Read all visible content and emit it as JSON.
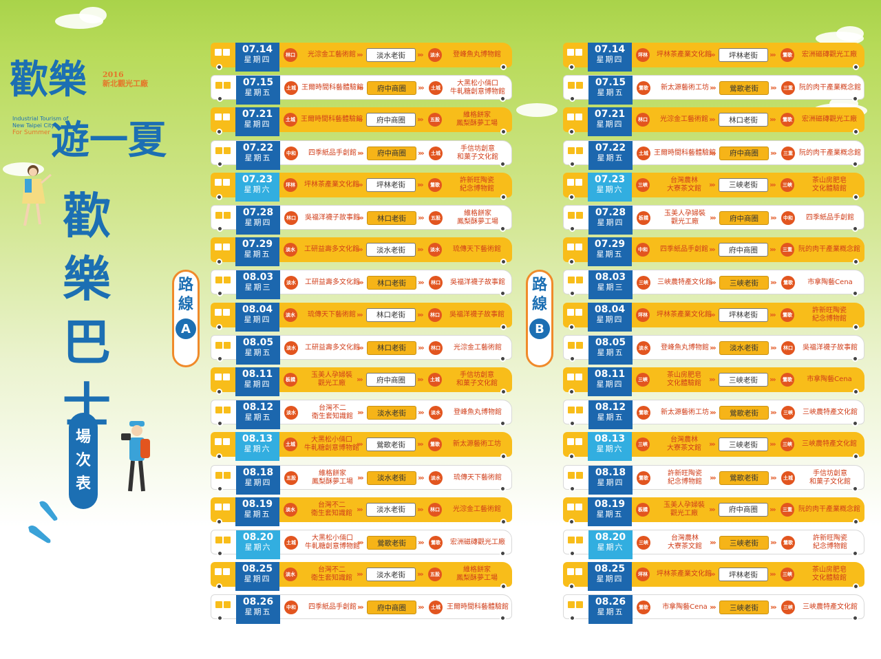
{
  "logo": {
    "line1": "歡樂",
    "line2": "遊一夏",
    "year": "2016",
    "subtitle": "新北觀光工廠",
    "en1": "Industrial Tourism of",
    "en2": "New Taipei City",
    "en3": "For Summer"
  },
  "title": [
    "歡",
    "樂",
    "巴",
    "士"
  ],
  "schedule_label": [
    "場",
    "次",
    "表"
  ],
  "route_a": {
    "label": [
      "路",
      "線"
    ],
    "letter": "A"
  },
  "route_b": {
    "label": [
      "路",
      "線"
    ],
    "letter": "B"
  },
  "colors": {
    "accent": "#1c67ae",
    "highlight_date": "#32aee0",
    "bus_yellow": "#f8bd1a",
    "district": "#e2551f"
  },
  "routes": {
    "A": [
      {
        "date": "07.14",
        "wk": "星期四",
        "c": "blue",
        "s1": "林口",
        "from": "光淙金工藝術館",
        "stop": "淡水老街",
        "hi": false,
        "s2": "淡水",
        "to": "登峰魚丸博物館"
      },
      {
        "date": "07.15",
        "wk": "星期五",
        "c": "blue",
        "s1": "土城",
        "from": "王爾時間科藝體驗館",
        "stop": "府中商圈",
        "hi": true,
        "s2": "土城",
        "to": "大黑松小倆口\n牛軋糖創意博物館"
      },
      {
        "date": "07.21",
        "wk": "星期四",
        "c": "blue",
        "s1": "土城",
        "from": "王爾時間科藝體驗館",
        "stop": "府中商圈",
        "hi": false,
        "s2": "五股",
        "to": "維格餅家\n鳳梨酥夢工場"
      },
      {
        "date": "07.22",
        "wk": "星期五",
        "c": "blue",
        "s1": "中和",
        "from": "四季紙品手創館",
        "stop": "府中商圈",
        "hi": true,
        "s2": "土城",
        "to": "手信坊創意\n和菓子文化館"
      },
      {
        "date": "07.23",
        "wk": "星期六",
        "c": "sky",
        "s1": "坪林",
        "from": "坪林茶產業文化館",
        "stop": "坪林老街",
        "hi": false,
        "s2": "鶯歌",
        "to": "許新旺陶瓷\n紀念博物館"
      },
      {
        "date": "07.28",
        "wk": "星期四",
        "c": "blue",
        "s1": "林口",
        "from": "吳福洋襪子故事館",
        "stop": "林口老街",
        "hi": true,
        "s2": "五股",
        "to": "維格餅家\n鳳梨酥夢工場"
      },
      {
        "date": "07.29",
        "wk": "星期五",
        "c": "blue",
        "s1": "淡水",
        "from": "工研益壽多文化館",
        "stop": "淡水老街",
        "hi": false,
        "s2": "淡水",
        "to": "琉傳天下藝術館"
      },
      {
        "date": "08.03",
        "wk": "星期三",
        "c": "blue",
        "s1": "淡水",
        "from": "工研益壽多文化館",
        "stop": "林口老街",
        "hi": true,
        "s2": "林口",
        "to": "吳福洋襪子故事館"
      },
      {
        "date": "08.04",
        "wk": "星期四",
        "c": "blue",
        "s1": "淡水",
        "from": "琉傳天下藝術館",
        "stop": "林口老街",
        "hi": false,
        "s2": "林口",
        "to": "吳福洋襪子故事館"
      },
      {
        "date": "08.05",
        "wk": "星期五",
        "c": "blue",
        "s1": "淡水",
        "from": "工研益壽多文化館",
        "stop": "林口老街",
        "hi": true,
        "s2": "林口",
        "to": "光淙金工藝術館"
      },
      {
        "date": "08.11",
        "wk": "星期四",
        "c": "blue",
        "s1": "板橋",
        "from": "玉美人孕婦裝\n觀光工廠",
        "stop": "府中商圈",
        "hi": false,
        "s2": "土城",
        "to": "手信坊創意\n和菓子文化館"
      },
      {
        "date": "08.12",
        "wk": "星期五",
        "c": "blue",
        "s1": "淡水",
        "from": "台灣不二\n衛生套知識館",
        "stop": "淡水老街",
        "hi": true,
        "s2": "淡水",
        "to": "登峰魚丸博物館"
      },
      {
        "date": "08.13",
        "wk": "星期六",
        "c": "sky",
        "s1": "土城",
        "from": "大黑松小倆口\n牛軋糖創意博物館",
        "stop": "鶯歌老街",
        "hi": false,
        "s2": "鶯歌",
        "to": "新太源藝術工坊"
      },
      {
        "date": "08.18",
        "wk": "星期四",
        "c": "blue",
        "s1": "五股",
        "from": "維格餅家\n鳳梨酥夢工場",
        "stop": "淡水老街",
        "hi": true,
        "s2": "淡水",
        "to": "琉傳天下藝術館"
      },
      {
        "date": "08.19",
        "wk": "星期五",
        "c": "blue",
        "s1": "淡水",
        "from": "台灣不二\n衛生套知識館",
        "stop": "淡水老街",
        "hi": false,
        "s2": "林口",
        "to": "光淙金工藝術館"
      },
      {
        "date": "08.20",
        "wk": "星期六",
        "c": "sky",
        "s1": "土城",
        "from": "大黑松小倆口\n牛軋糖創意博物館",
        "stop": "鶯歌老街",
        "hi": true,
        "s2": "鶯歌",
        "to": "宏洲磁磚觀光工廠"
      },
      {
        "date": "08.25",
        "wk": "星期四",
        "c": "blue",
        "s1": "淡水",
        "from": "台灣不二\n衛生套知識館",
        "stop": "淡水老街",
        "hi": false,
        "s2": "五股",
        "to": "維格餅家\n鳳梨酥夢工場"
      },
      {
        "date": "08.26",
        "wk": "星期五",
        "c": "blue",
        "s1": "中和",
        "from": "四季紙品手創館",
        "stop": "府中商圈",
        "hi": true,
        "s2": "土城",
        "to": "王爾時間科藝體驗館"
      }
    ],
    "B": [
      {
        "date": "07.14",
        "wk": "星期四",
        "c": "blue",
        "s1": "坪林",
        "from": "坪林茶產業文化館",
        "stop": "坪林老街",
        "hi": false,
        "s2": "鶯歌",
        "to": "宏洲磁磚觀光工廠"
      },
      {
        "date": "07.15",
        "wk": "星期五",
        "c": "blue",
        "s1": "鶯歌",
        "from": "新太源藝術工坊",
        "stop": "鶯歌老街",
        "hi": true,
        "s2": "三重",
        "to": "阮的肉干產業概念館"
      },
      {
        "date": "07.21",
        "wk": "星期四",
        "c": "blue",
        "s1": "林口",
        "from": "光淙金工藝術館",
        "stop": "林口老街",
        "hi": false,
        "s2": "鶯歌",
        "to": "宏洲磁磚觀光工廠"
      },
      {
        "date": "07.22",
        "wk": "星期五",
        "c": "blue",
        "s1": "土城",
        "from": "王爾時間科藝體驗館",
        "stop": "府中商圈",
        "hi": true,
        "s2": "三重",
        "to": "阮的肉干產業概念館"
      },
      {
        "date": "07.23",
        "wk": "星期六",
        "c": "sky",
        "s1": "三峽",
        "from": "台灣農林\n大寮茶文館",
        "stop": "三峽老街",
        "hi": false,
        "s2": "三峽",
        "to": "茶山房肥皂\n文化體驗館"
      },
      {
        "date": "07.28",
        "wk": "星期四",
        "c": "blue",
        "s1": "板橋",
        "from": "玉美人孕婦裝\n觀光工廠",
        "stop": "府中商圈",
        "hi": true,
        "s2": "中和",
        "to": "四季紙品手創館"
      },
      {
        "date": "07.29",
        "wk": "星期五",
        "c": "blue",
        "s1": "中和",
        "from": "四季紙品手創館",
        "stop": "府中商圈",
        "hi": false,
        "s2": "三重",
        "to": "阮的肉干產業概念館"
      },
      {
        "date": "08.03",
        "wk": "星期三",
        "c": "blue",
        "s1": "三峽",
        "from": "三峽農特產文化館",
        "stop": "三峽老街",
        "hi": true,
        "s2": "鶯歌",
        "to": "市拿陶藝Cena"
      },
      {
        "date": "08.04",
        "wk": "星期四",
        "c": "blue",
        "s1": "坪林",
        "from": "坪林茶產業文化館",
        "stop": "坪林老街",
        "hi": false,
        "s2": "鶯歌",
        "to": "許新旺陶瓷\n紀念博物館"
      },
      {
        "date": "08.05",
        "wk": "星期五",
        "c": "blue",
        "s1": "淡水",
        "from": "登峰魚丸博物館",
        "stop": "淡水老街",
        "hi": true,
        "s2": "林口",
        "to": "吳福洋襪子故事館"
      },
      {
        "date": "08.11",
        "wk": "星期四",
        "c": "blue",
        "s1": "三峽",
        "from": "茶山房肥皂\n文化體驗館",
        "stop": "三峽老街",
        "hi": false,
        "s2": "鶯歌",
        "to": "市拿陶藝Cena"
      },
      {
        "date": "08.12",
        "wk": "星期五",
        "c": "blue",
        "s1": "鶯歌",
        "from": "新太源藝術工坊",
        "stop": "鶯歌老街",
        "hi": true,
        "s2": "三峽",
        "to": "三峽農特產文化館"
      },
      {
        "date": "08.13",
        "wk": "星期六",
        "c": "sky",
        "s1": "三峽",
        "from": "台灣農林\n大寮茶文館",
        "stop": "三峽老街",
        "hi": false,
        "s2": "三峽",
        "to": "三峽農特產文化館"
      },
      {
        "date": "08.18",
        "wk": "星期四",
        "c": "blue",
        "s1": "鶯歌",
        "from": "許新旺陶瓷\n紀念博物館",
        "stop": "鶯歌老街",
        "hi": true,
        "s2": "土城",
        "to": "手信坊創意\n和菓子文化館"
      },
      {
        "date": "08.19",
        "wk": "星期五",
        "c": "blue",
        "s1": "板橋",
        "from": "玉美人孕婦裝\n觀光工廠",
        "stop": "府中商圈",
        "hi": false,
        "s2": "三重",
        "to": "阮的肉干產業概念館"
      },
      {
        "date": "08.20",
        "wk": "星期六",
        "c": "sky",
        "s1": "三峽",
        "from": "台灣農林\n大寮茶文館",
        "stop": "三峽老街",
        "hi": true,
        "s2": "鶯歌",
        "to": "許新旺陶瓷\n紀念博物館"
      },
      {
        "date": "08.25",
        "wk": "星期四",
        "c": "blue",
        "s1": "坪林",
        "from": "坪林茶產業文化館",
        "stop": "坪林老街",
        "hi": false,
        "s2": "三峽",
        "to": "茶山房肥皂\n文化體驗館"
      },
      {
        "date": "08.26",
        "wk": "星期五",
        "c": "blue",
        "s1": "鶯歌",
        "from": "市拿陶藝Cena",
        "stop": "三峽老街",
        "hi": true,
        "s2": "三峽",
        "to": "三峽農特產文化館"
      }
    ]
  }
}
